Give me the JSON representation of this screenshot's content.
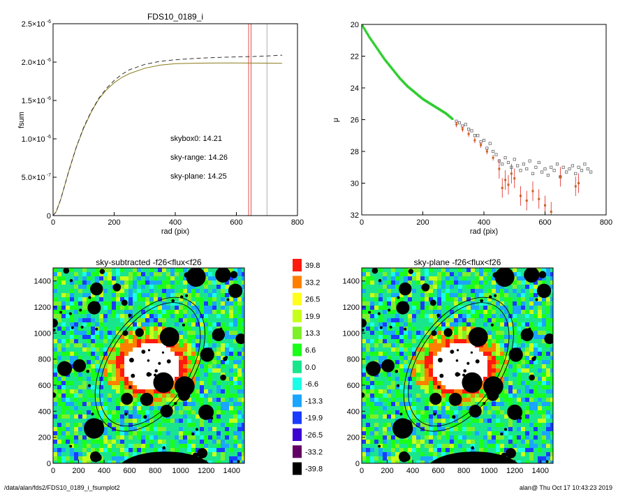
{
  "footer": {
    "path": "/data/alan/fds2/FDS10_0189_i_fsumplot2",
    "stamp": "alan@  Thu Oct 17 10:43:23 2019"
  },
  "colors": {
    "curve_olive": "#8a7a1a",
    "sky_range_red": "#e0201a",
    "sky_plane_green": "#2ecc2e",
    "annulus_line": "#000000",
    "grey_line": "#999999"
  },
  "chart_data": [
    {
      "type": "line",
      "title": "FDS10_0189_i",
      "xlabel": "rad (pix)",
      "ylabel": "fsum",
      "xlim": [
        0,
        800
      ],
      "ylim": [
        0,
        2.5e-06
      ],
      "x_ticks": [
        "0",
        "200",
        "400",
        "600",
        "800"
      ],
      "y_tick_values": [
        0,
        5e-07,
        1e-06,
        1.5e-06,
        2e-06,
        2.5e-06
      ],
      "y_tick_mantissa": [
        "0",
        "5.0×10",
        "1.0×10",
        "1.5×10",
        "2.0×10",
        "2.5×10"
      ],
      "y_tick_exponent": [
        "",
        "-7",
        "-6",
        "-6",
        "-6",
        "-6"
      ],
      "series": [
        {
          "style": "solid",
          "color": "olive",
          "x": [
            0,
            10,
            25,
            50,
            75,
            100,
            125,
            150,
            175,
            200,
            225,
            250,
            300,
            350,
            400,
            450,
            500,
            550,
            600,
            650,
            700,
            750
          ],
          "y": [
            0,
            5e-08,
            2.1e-07,
            5.6e-07,
            8.8e-07,
            1.14e-06,
            1.35e-06,
            1.52e-06,
            1.64e-06,
            1.73e-06,
            1.8e-06,
            1.85e-06,
            1.92e-06,
            1.96e-06,
            1.98e-06,
            1.985e-06,
            1.987e-06,
            1.988e-06,
            1.988e-06,
            1.987e-06,
            1.986e-06,
            1.985e-06
          ]
        },
        {
          "style": "dashed",
          "color": "black",
          "x": [
            0,
            10,
            25,
            50,
            75,
            100,
            125,
            150,
            175,
            200,
            225,
            250,
            300,
            350,
            400,
            450,
            500,
            550,
            600,
            650,
            700,
            750
          ],
          "y": [
            0,
            5e-08,
            2.1e-07,
            5.6e-07,
            8.8e-07,
            1.15e-06,
            1.36e-06,
            1.53e-06,
            1.66e-06,
            1.76e-06,
            1.84e-06,
            1.9e-06,
            1.97e-06,
            2.01e-06,
            2.03e-06,
            2.045e-06,
            2.055e-06,
            2.062e-06,
            2.068e-06,
            2.073e-06,
            2.08e-06,
            2.09e-06
          ]
        }
      ],
      "vertical_lines": [
        {
          "x": 640,
          "color": "red"
        },
        {
          "x": 648,
          "color": "red"
        },
        {
          "x": 700,
          "color": "grey"
        }
      ],
      "annotations": [
        {
          "text": "skybox0: 14.21",
          "color": "black"
        },
        {
          "text": "sky-range: 14.26",
          "color": "red"
        },
        {
          "text": "sky-plane: 14.25",
          "color": "green"
        }
      ]
    },
    {
      "type": "scatter",
      "xlabel": "rad (pix)",
      "ylabel": "μ",
      "xlim": [
        0,
        800
      ],
      "ylim": [
        32,
        20
      ],
      "x_ticks": [
        "0",
        "200",
        "400",
        "600",
        "800"
      ],
      "y_ticks": [
        "20",
        "22",
        "24",
        "26",
        "28",
        "30",
        "32"
      ],
      "profile_dense": {
        "color": "green",
        "x": [
          0,
          25,
          50,
          75,
          100,
          125,
          150,
          175,
          200,
          225,
          250,
          275,
          300
        ],
        "y": [
          20.0,
          20.8,
          21.5,
          22.2,
          22.8,
          23.4,
          23.9,
          24.3,
          24.7,
          25.0,
          25.3,
          25.6,
          26.0
        ]
      },
      "profile_sparse_grey": {
        "x": [
          310,
          320,
          330,
          340,
          350,
          360,
          370,
          380,
          390,
          400,
          410,
          420,
          430,
          440,
          450,
          460,
          470,
          480,
          490,
          500,
          510,
          520,
          530,
          540,
          550,
          560,
          570,
          580,
          590,
          600,
          610,
          620,
          630,
          640,
          650,
          660,
          670,
          680,
          690,
          700,
          710,
          720,
          730,
          740,
          750
        ],
        "y": [
          26.1,
          26.2,
          26.4,
          26.3,
          26.6,
          26.7,
          27.0,
          27.0,
          27.4,
          27.3,
          27.8,
          27.5,
          28.0,
          28.2,
          28.6,
          28.8,
          28.4,
          28.7,
          29.0,
          28.5,
          28.9,
          29.2,
          28.8,
          29.1,
          28.6,
          29.4,
          29.0,
          28.7,
          29.3,
          29.1,
          29.5,
          29.0,
          29.2,
          28.8,
          29.6,
          29.0,
          29.3,
          29.1,
          28.9,
          29.4,
          29.0,
          29.2,
          28.8,
          29.1,
          29.3
        ]
      },
      "profile_red": {
        "x": [
          310,
          330,
          350,
          370,
          390,
          410,
          430,
          450,
          460,
          470,
          480,
          490,
          500,
          520,
          540,
          560,
          580,
          600,
          620,
          650,
          700,
          710
        ],
        "y": [
          26.3,
          26.6,
          26.9,
          27.3,
          27.6,
          28.0,
          28.4,
          29.1,
          30.3,
          29.8,
          30.1,
          29.4,
          29.7,
          30.8,
          31.1,
          30.5,
          31.0,
          31.4,
          31.8,
          29.6,
          30.2,
          30.0
        ]
      }
    },
    {
      "type": "heatmap",
      "title": "sky-subtracted -f26<flux<f26",
      "xlim": [
        0,
        1500
      ],
      "ylim": [
        0,
        1500
      ],
      "x_ticks": [
        "0",
        "200",
        "400",
        "600",
        "800",
        "1000",
        "1200",
        "1400"
      ],
      "y_ticks": [
        "0",
        "200",
        "400",
        "600",
        "800",
        "1000",
        "1200",
        "1400"
      ]
    },
    {
      "type": "heatmap",
      "title": "sky-plane -f26<flux<f26",
      "xlim": [
        0,
        1500
      ],
      "ylim": [
        0,
        1500
      ],
      "x_ticks": [
        "0",
        "200",
        "400",
        "600",
        "800",
        "1000",
        "1200",
        "1400"
      ],
      "y_ticks": [
        "0",
        "200",
        "400",
        "600",
        "800",
        "1000",
        "1200",
        "1400"
      ]
    }
  ],
  "colorbar": {
    "labels": [
      "39.8",
      "33.2",
      "26.5",
      "19.9",
      "13.3",
      "6.6",
      "0.0",
      "-6.6",
      "-13.3",
      "-19.9",
      "-26.5",
      "-33.2",
      "-39.8"
    ],
    "colors": [
      "#ff1a0d",
      "#ff8000",
      "#ffff1a",
      "#c8ff1a",
      "#7ef028",
      "#1aff1a",
      "#19e68c",
      "#1affe6",
      "#1aa6ff",
      "#1a3cff",
      "#3c00d2",
      "#640064",
      "#000000"
    ]
  }
}
